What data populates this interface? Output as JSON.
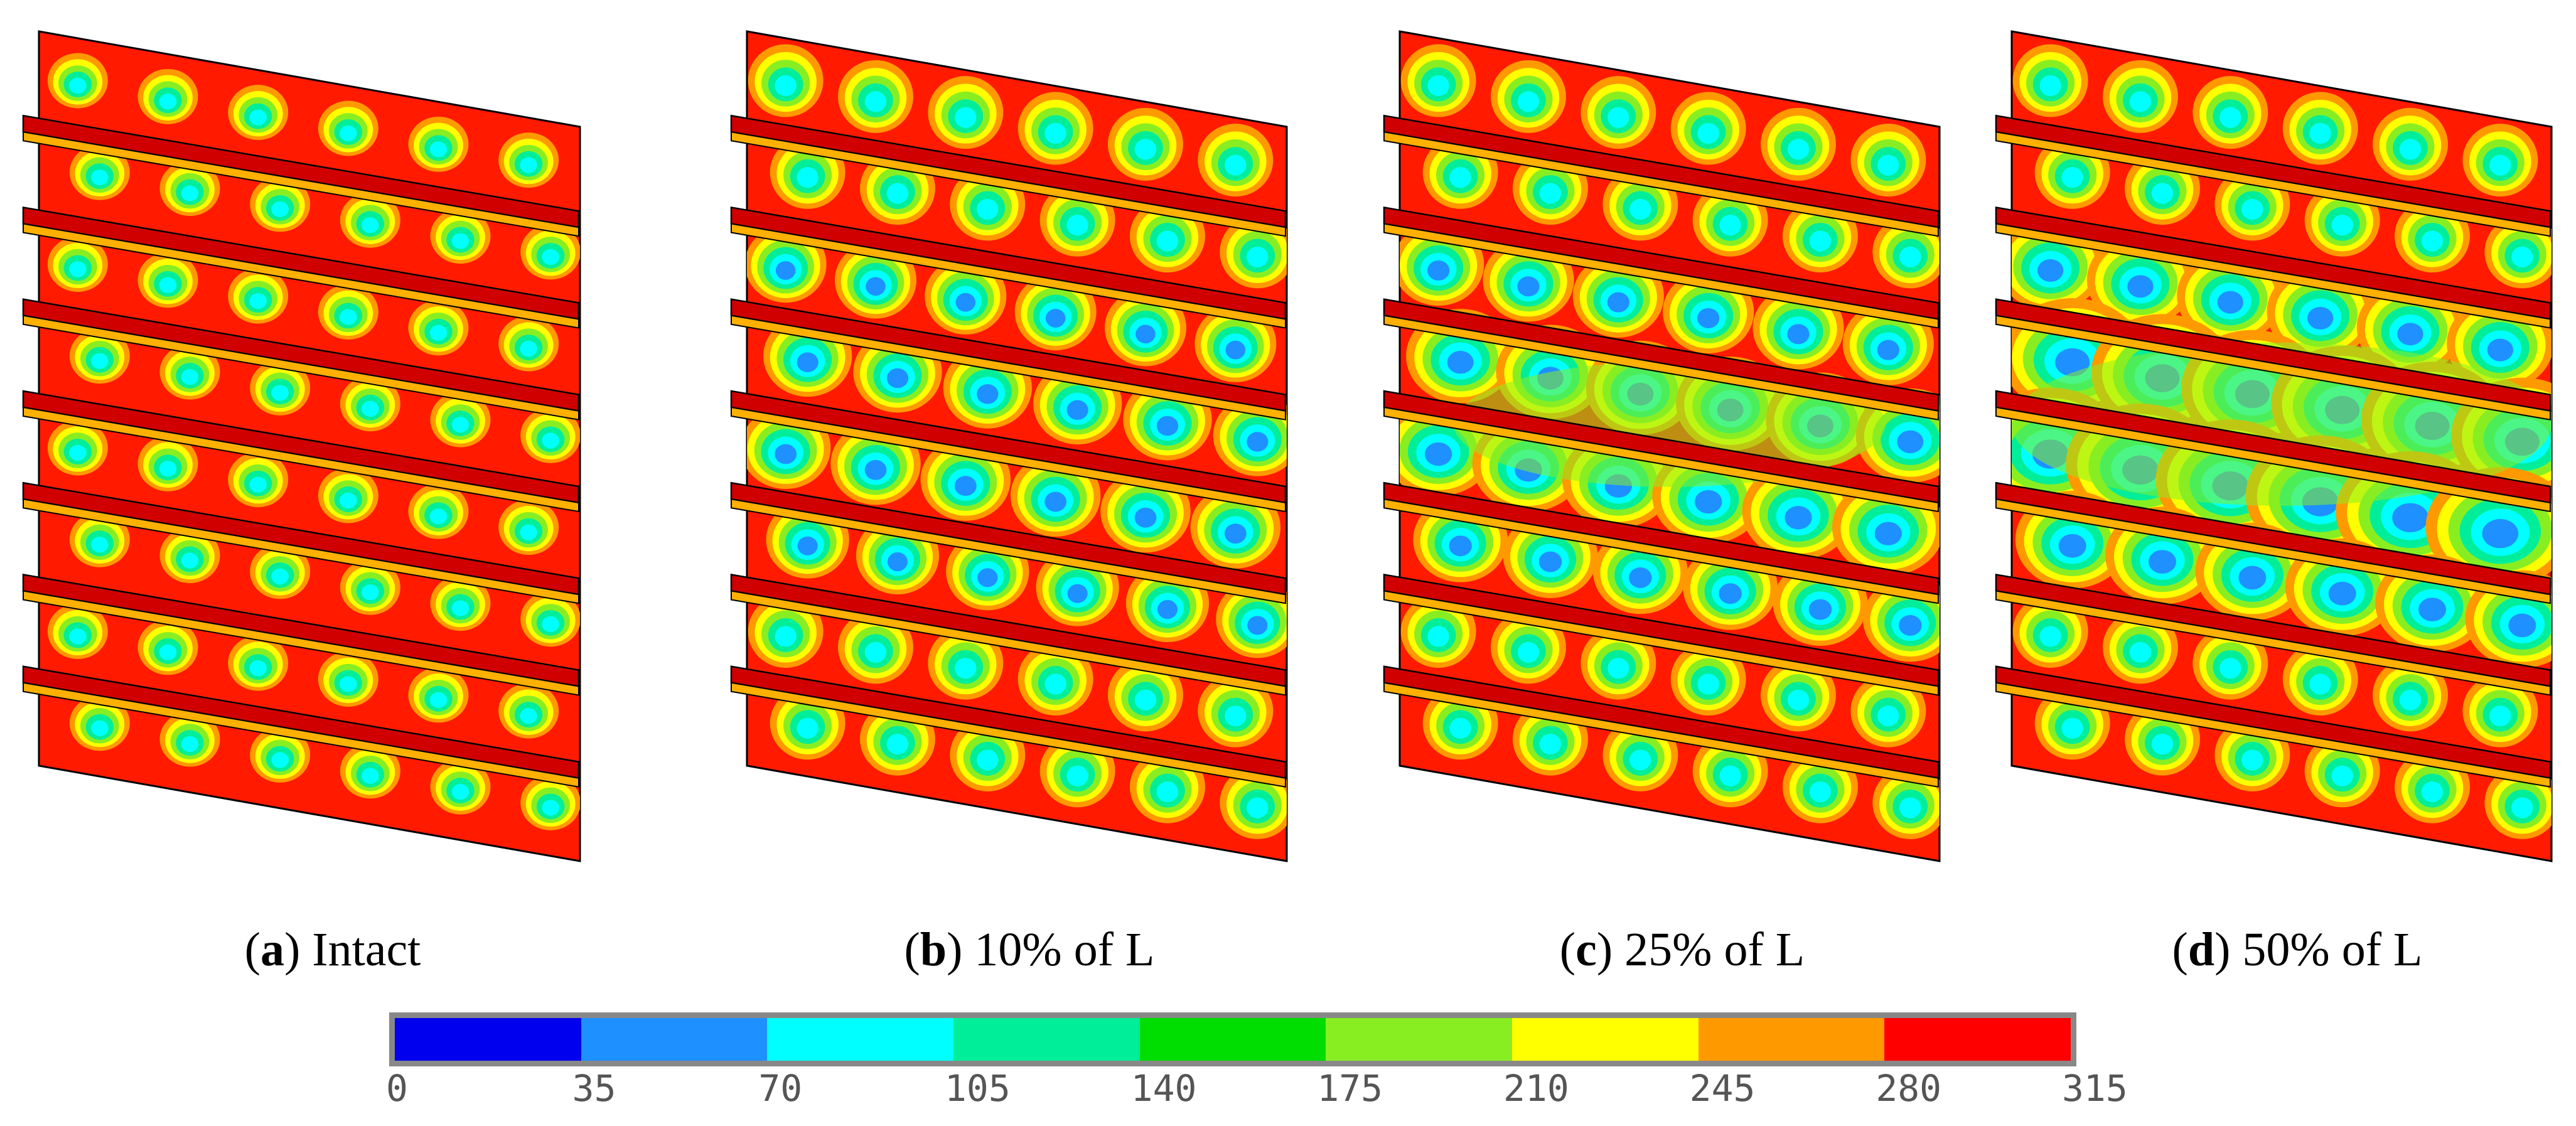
{
  "panels": [
    {
      "id": "a",
      "letter": "a",
      "label": "Intact",
      "damage": 0
    },
    {
      "id": "b",
      "letter": "b",
      "label": "10% of L",
      "damage": 0.1
    },
    {
      "id": "c",
      "letter": "c",
      "label": "25% of L",
      "damage": 0.25
    },
    {
      "id": "d",
      "letter": "d",
      "label": "50% of L",
      "damage": 0.5
    }
  ],
  "colorbar": {
    "ticks": [
      "0",
      "35",
      "70",
      "105",
      "140",
      "175",
      "210",
      "245",
      "280",
      "315"
    ],
    "colors": [
      "#0000ee",
      "#1e90ff",
      "#00ffff",
      "#00ee99",
      "#00dd00",
      "#88ee22",
      "#ffff00",
      "#ff9900",
      "#ff0000"
    ]
  },
  "colors": {
    "background_field": "#ff1a00",
    "stiffener_face": "#d00000",
    "stiffener_edge": "#ffb000"
  }
}
